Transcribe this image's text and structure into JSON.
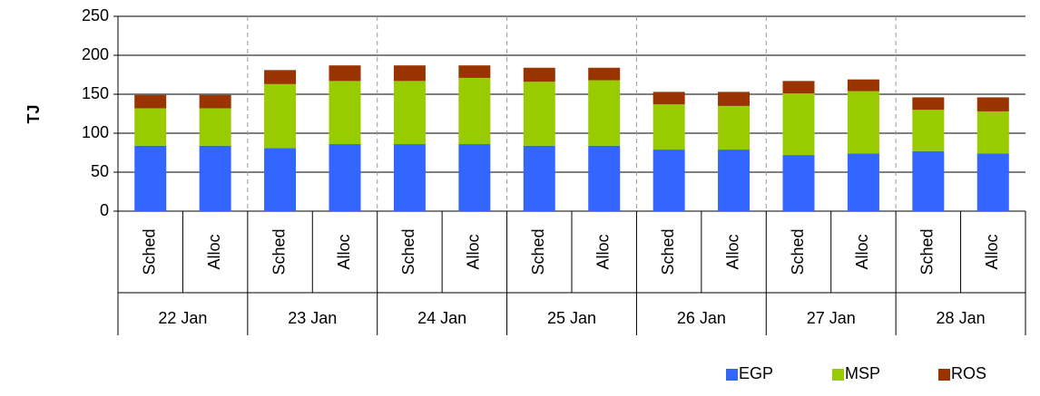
{
  "chart_data": {
    "type": "bar",
    "stacked": true,
    "y_label": "TJ",
    "categories": [
      "Sched",
      "Alloc",
      "Sched",
      "Alloc",
      "Sched",
      "Alloc",
      "Sched",
      "Alloc",
      "Sched",
      "Alloc",
      "Sched",
      "Alloc",
      "Sched",
      "Alloc"
    ],
    "groups": [
      "22 Jan",
      "23 Jan",
      "24 Jan",
      "25 Jan",
      "26 Jan",
      "27 Jan",
      "28 Jan"
    ],
    "series": [
      {
        "name": "EGP",
        "color": "#3366ff",
        "values": [
          84,
          84,
          81,
          86,
          86,
          86,
          84,
          84,
          79,
          79,
          72,
          74,
          77,
          74
        ]
      },
      {
        "name": "MSP",
        "color": "#99cc00",
        "values": [
          48,
          48,
          82,
          81,
          81,
          85,
          82,
          84,
          58,
          56,
          79,
          80,
          53,
          54
        ]
      },
      {
        "name": "ROS",
        "color": "#993300",
        "values": [
          17,
          17,
          18,
          20,
          20,
          16,
          18,
          16,
          16,
          18,
          16,
          15,
          16,
          18
        ]
      }
    ],
    "ylim": [
      0,
      250
    ],
    "yticks": [
      0,
      50,
      100,
      150,
      200,
      250
    ],
    "grid": true,
    "legend_position": "bottom-right"
  }
}
